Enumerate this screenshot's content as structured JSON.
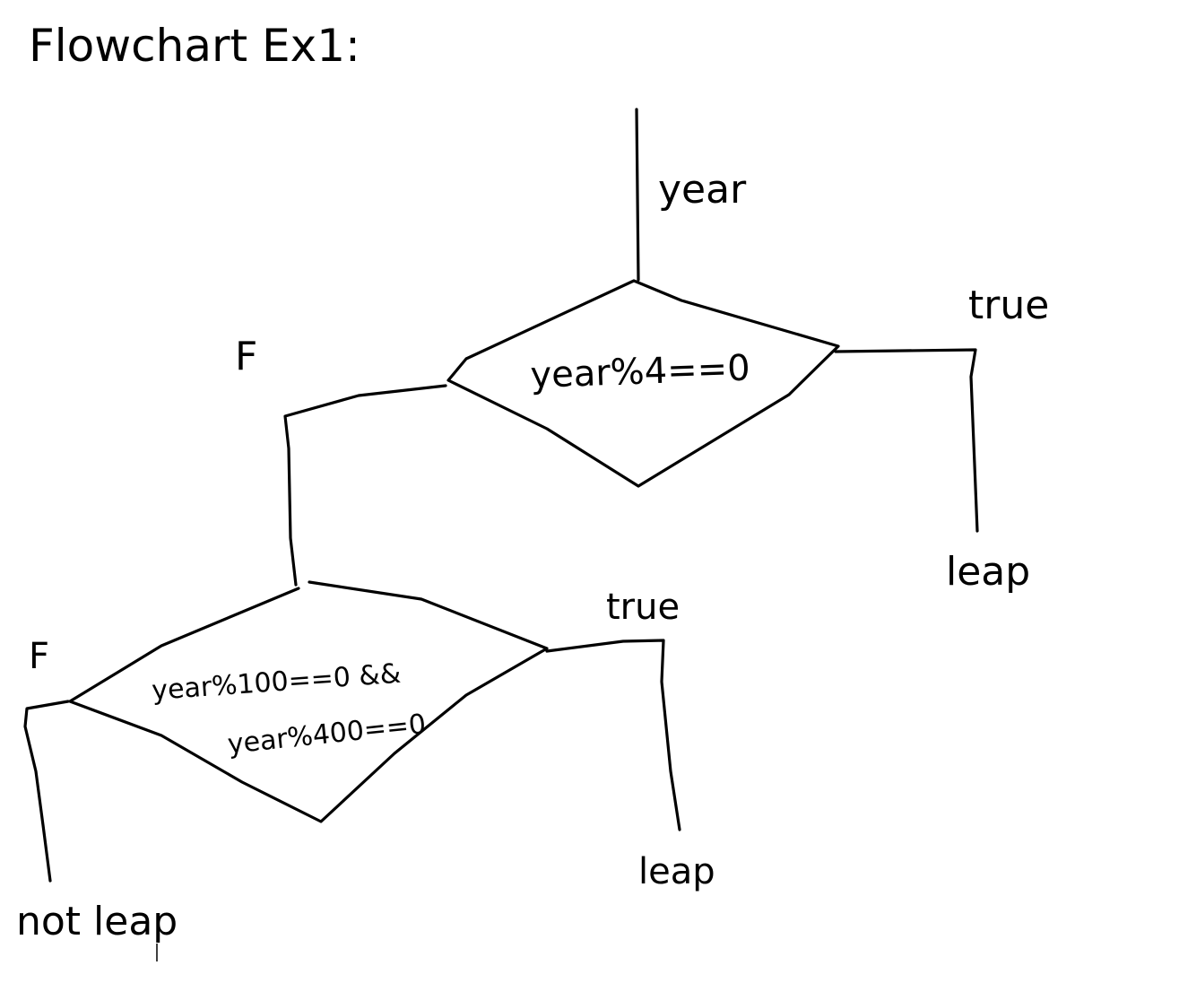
{
  "title": "Flowchart Ex1:",
  "input_label": "year",
  "decision1": {
    "condition": "year%4==0",
    "true_label": "true",
    "false_label": "F",
    "true_result": "leap"
  },
  "decision2": {
    "condition_line1": "year%100==0 &&",
    "condition_line2": "year%400==0",
    "true_label": "true",
    "false_label": "F",
    "true_result": "leap",
    "false_result": "not leap"
  }
}
